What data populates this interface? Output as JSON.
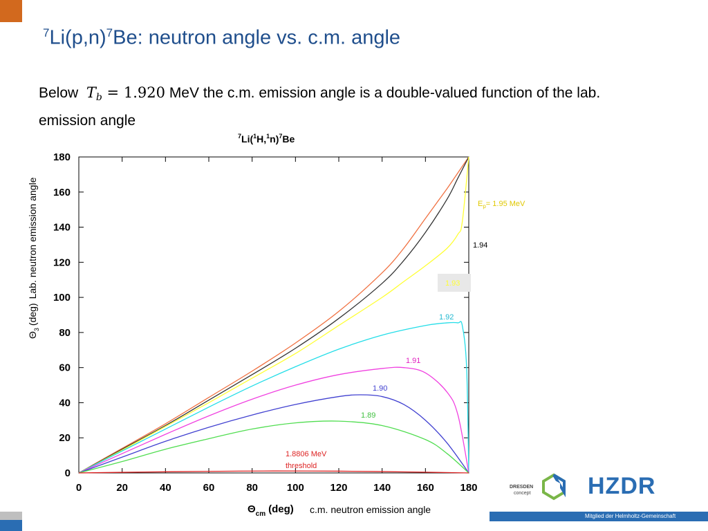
{
  "slide": {
    "title_sup1": "7",
    "title_part1": "Li(p,n)",
    "title_sup2": "7",
    "title_part2": "Be: neutron angle vs. c.m. angle",
    "body_prefix": "Below",
    "math_var": "T",
    "math_sub": "b",
    "math_eq": "=",
    "math_val": "1.920",
    "body_suffix": "MeV the c.m. emission angle is a double-valued function of the lab. emission angle",
    "footer_text": "Mitglied der Helmholtz-Gemeinschaft",
    "logo_dresden_line1": "DRESDEN",
    "logo_dresden_line2": "concept",
    "logo_hzdr": "HZDR"
  },
  "colors": {
    "title": "#1f4e8c",
    "accent_orange": "#d2691e",
    "footer_blue": "#2a6db3"
  },
  "chart_data": {
    "type": "line",
    "title_parts": [
      "7",
      "Li(",
      "1",
      "H,",
      "1",
      "n)",
      "7",
      "Be"
    ],
    "xlabel_main": "Θ",
    "xlabel_sub": "cm",
    "xlabel_unit": "(deg)",
    "xlabel_extra": "c.m. neutron emission angle",
    "ylabel_main": "Θ",
    "ylabel_sub": "3",
    "ylabel_unit": "(deg)",
    "ylabel_extra": "Lab. neutron emission angle",
    "xlim": [
      0,
      180
    ],
    "ylim": [
      0,
      180
    ],
    "xticks": [
      0,
      20,
      40,
      60,
      80,
      100,
      120,
      140,
      160,
      180
    ],
    "yticks": [
      0,
      20,
      40,
      60,
      80,
      100,
      120,
      140,
      160,
      180
    ],
    "grid": false,
    "legend": "inline-labels",
    "series": [
      {
        "name": "1.95",
        "label_prefix": "E",
        "label_sub": "p",
        "label_suffix": "= 1.95 MeV",
        "color": "#f07040",
        "x": [
          0,
          20,
          40,
          60,
          80,
          100,
          120,
          140,
          150,
          160,
          170,
          175,
          180
        ],
        "y": [
          0,
          14,
          28,
          43,
          58,
          74,
          92,
          114,
          128,
          145,
          162,
          171,
          180
        ]
      },
      {
        "name": "1.94",
        "label_text": "1.94",
        "color": "#333333",
        "x": [
          0,
          20,
          40,
          60,
          80,
          100,
          120,
          140,
          150,
          160,
          170,
          175,
          180
        ],
        "y": [
          0,
          13.5,
          27,
          41.5,
          56,
          71,
          88,
          108,
          121,
          137,
          156,
          168,
          180
        ]
      },
      {
        "name": "1.93",
        "label_text": "1.93",
        "color": "#ffff33",
        "x": [
          0,
          20,
          40,
          60,
          80,
          100,
          120,
          140,
          150,
          160,
          170,
          175,
          177,
          180
        ],
        "y": [
          0,
          13,
          26.5,
          40,
          54,
          68,
          84,
          100,
          109,
          118,
          128,
          136,
          143,
          180
        ]
      },
      {
        "name": "1.92",
        "label_text": "1.92",
        "color": "#22dde8",
        "x": [
          0,
          20,
          40,
          60,
          80,
          100,
          120,
          140,
          160,
          170,
          175,
          177,
          179,
          180
        ],
        "y": [
          0,
          12.5,
          25,
          37.5,
          49.5,
          60.5,
          70.5,
          78.5,
          84,
          85.5,
          85.5,
          84,
          60,
          0
        ]
      },
      {
        "name": "1.91",
        "label_text": "1.91",
        "color": "#f040e0",
        "x": [
          0,
          20,
          40,
          60,
          80,
          100,
          120,
          140,
          150,
          160,
          170,
          175,
          180
        ],
        "y": [
          0,
          11,
          22,
          32.5,
          42,
          50,
          56,
          59.5,
          60,
          57,
          46,
          33,
          0
        ]
      },
      {
        "name": "1.90",
        "label_text": "1.90",
        "color": "#4040d0",
        "x": [
          0,
          20,
          40,
          60,
          80,
          100,
          120,
          130,
          140,
          150,
          160,
          170,
          180
        ],
        "y": [
          0,
          9,
          18,
          26,
          33,
          39,
          43.5,
          44.5,
          43.5,
          39,
          30,
          17,
          0
        ]
      },
      {
        "name": "1.89",
        "label_text": "1.89",
        "color": "#50dd50",
        "x": [
          0,
          20,
          40,
          60,
          80,
          100,
          120,
          140,
          160,
          170,
          180
        ],
        "y": [
          0,
          6.5,
          13.5,
          19.5,
          25,
          28.5,
          29.5,
          27,
          19,
          11,
          0
        ]
      },
      {
        "name": "1.8806 MeV threshold",
        "label_text": "1.8806 MeV",
        "label_text2": "threshold",
        "color": "#dd2222",
        "x": [
          0,
          30,
          60,
          90,
          120,
          150,
          180
        ],
        "y": [
          0,
          0.5,
          0.9,
          1.1,
          1.0,
          0.6,
          0
        ]
      }
    ]
  }
}
